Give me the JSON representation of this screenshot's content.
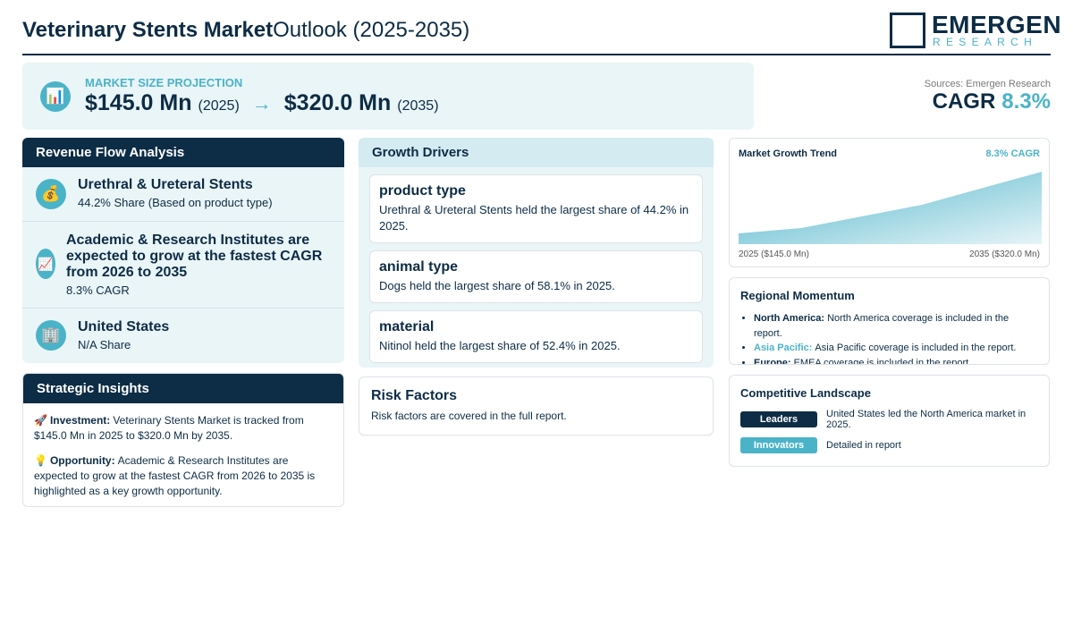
{
  "header": {
    "title_bold": "Veterinary Stents Market",
    "title_rest": "Outlook (2025-2035)",
    "logo_main": "EMERGEN",
    "logo_sub": "RESEARCH"
  },
  "projection": {
    "label": "MARKET SIZE PROJECTION",
    "icon": "📊",
    "start_value": "$145.0 Mn",
    "start_year": "(2025)",
    "arrow": "→",
    "end_value": "$320.0 Mn",
    "end_year": "(2035)"
  },
  "sources": "Sources: Emergen Research",
  "cagr": {
    "label": "CAGR",
    "value": "8.3%"
  },
  "revenue_flow": {
    "title": "Revenue Flow Analysis",
    "items": [
      {
        "icon": "💰",
        "title": "Urethral & Ureteral Stents",
        "detail": "44.2% Share (Based on product type)"
      },
      {
        "icon": "📈",
        "title": "Academic & Research Institutes are expected to grow at the fastest CAGR from 2026 to 2035",
        "detail": "8.3% CAGR"
      },
      {
        "icon": "🏢",
        "title": "United States",
        "detail": "N/A Share"
      }
    ]
  },
  "strategic_insights": {
    "title": "Strategic Insights",
    "items": [
      {
        "icon": "🚀",
        "label": "Investment:",
        "text": "Veterinary Stents Market is tracked from $145.0 Mn in 2025 to $320.0 Mn by 2035."
      },
      {
        "icon": "💡",
        "label": "Opportunity:",
        "text": "Academic & Research Institutes are expected to grow at the fastest CAGR from 2026 to 2035 is highlighted as a key growth opportunity."
      }
    ]
  },
  "growth_drivers": {
    "title": "Growth Drivers",
    "items": [
      {
        "title": "product type",
        "text": "Urethral & Ureteral Stents held the largest share of 44.2% in 2025."
      },
      {
        "title": "animal type",
        "text": "Dogs held the largest share of 58.1% in 2025."
      },
      {
        "title": "material",
        "text": "Nitinol held the largest share of 52.4% in 2025."
      }
    ]
  },
  "risk_factors": {
    "title": "Risk Factors",
    "text": "Risk factors are covered in the full report."
  },
  "growth_trend": {
    "title": "Market Growth Trend",
    "cagr": "8.3% CAGR",
    "start_label": "2025 ($145.0 Mn)",
    "end_label": "2035 ($320.0 Mn)"
  },
  "regional_momentum": {
    "title": "Regional Momentum",
    "items": [
      {
        "region": "North America:",
        "text": "North America coverage is included in the report."
      },
      {
        "region": "Asia Pacific:",
        "text": "Asia Pacific coverage is included in the report."
      },
      {
        "region": "Europe:",
        "text": "EMEA coverage is included in the report."
      }
    ]
  },
  "competitive_landscape": {
    "title": "Competitive Landscape",
    "items": [
      {
        "badge": "Leaders",
        "text": "United States led the North America market in 2025."
      },
      {
        "badge": "Innovators",
        "text": "Detailed in report"
      }
    ]
  }
}
